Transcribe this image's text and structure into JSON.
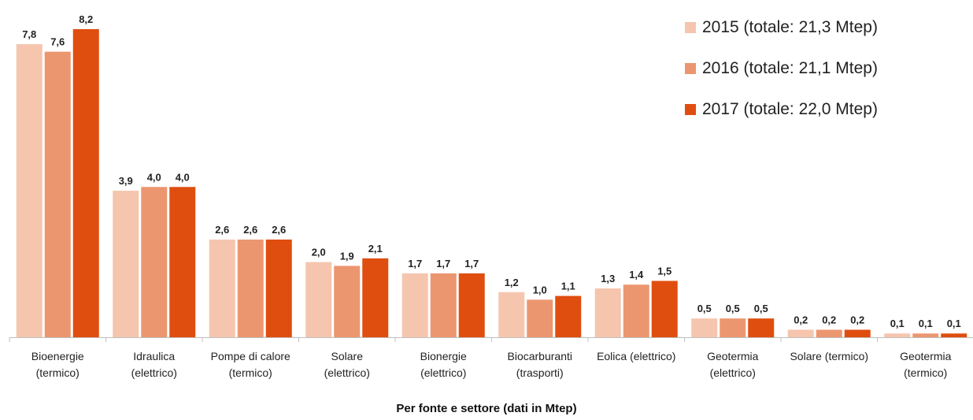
{
  "chart_data": {
    "type": "bar",
    "title": "",
    "xlabel": "Per fonte e settore  (dati in Mtep)",
    "ylabel": "",
    "ylim": [
      0,
      8.5
    ],
    "grid": false,
    "legend_position": "top-right",
    "categories": [
      [
        "Bioenergie",
        "(termico)"
      ],
      [
        "Idraulica",
        "(elettrico)"
      ],
      [
        "Pompe di calore",
        "(termico)"
      ],
      [
        "Solare",
        "(elettrico)"
      ],
      [
        "Bionergie",
        "(elettrico)"
      ],
      [
        "Biocarburanti",
        "(trasporti)"
      ],
      [
        "Eolica (elettrico)"
      ],
      [
        "Geotermia",
        "(elettrico)"
      ],
      [
        "Solare (termico)"
      ],
      [
        "Geotermia",
        "(termico)"
      ]
    ],
    "series": [
      {
        "name": "2015 (totale: 21,3 Mtep)",
        "color": "#f6c5ae",
        "values": [
          7.8,
          3.9,
          2.6,
          2.0,
          1.7,
          1.2,
          1.3,
          0.5,
          0.2,
          0.1
        ],
        "labels": [
          "7,8",
          "3,9",
          "2,6",
          "2,0",
          "1,7",
          "1,2",
          "1,3",
          "0,5",
          "0,2",
          "0,1"
        ]
      },
      {
        "name": "2016 (totale: 21,1 Mtep)",
        "color": "#ec9670",
        "values": [
          7.6,
          4.0,
          2.6,
          1.9,
          1.7,
          1.0,
          1.4,
          0.5,
          0.2,
          0.1
        ],
        "labels": [
          "7,6",
          "4,0",
          "2,6",
          "1,9",
          "1,7",
          "1,0",
          "1,4",
          "0,5",
          "0,2",
          "0,1"
        ]
      },
      {
        "name": "2017 (totale: 22,0 Mtep)",
        "color": "#e04e0f",
        "values": [
          8.2,
          4.0,
          2.6,
          2.1,
          1.7,
          1.1,
          1.5,
          0.5,
          0.2,
          0.1
        ],
        "labels": [
          "8,2",
          "4,0",
          "2,6",
          "2,1",
          "1,7",
          "1,1",
          "1,5",
          "0,5",
          "0,2",
          "0,1"
        ]
      }
    ]
  }
}
